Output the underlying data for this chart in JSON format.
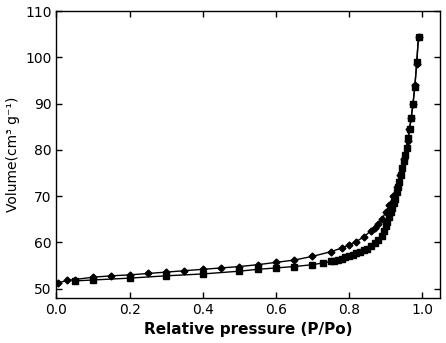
{
  "adsorption_x": [
    0.005,
    0.03,
    0.05,
    0.1,
    0.15,
    0.2,
    0.25,
    0.3,
    0.35,
    0.4,
    0.45,
    0.5,
    0.55,
    0.6,
    0.65,
    0.7,
    0.75,
    0.78,
    0.8,
    0.82,
    0.84,
    0.86,
    0.87,
    0.88,
    0.89,
    0.9,
    0.91,
    0.92,
    0.93,
    0.94,
    0.95,
    0.96,
    0.965,
    0.97,
    0.975,
    0.98,
    0.985,
    0.99
  ],
  "adsorption_y": [
    51.3,
    51.8,
    52.0,
    52.5,
    52.8,
    53.0,
    53.3,
    53.6,
    53.9,
    54.2,
    54.5,
    54.8,
    55.2,
    55.7,
    56.2,
    57.0,
    58.0,
    58.8,
    59.5,
    60.2,
    61.2,
    62.5,
    63.2,
    64.0,
    65.0,
    66.5,
    68.0,
    70.0,
    72.0,
    74.5,
    78.0,
    82.0,
    84.5,
    87.0,
    90.0,
    94.0,
    98.5,
    104.5
  ],
  "desorption_x": [
    0.99,
    0.985,
    0.98,
    0.975,
    0.97,
    0.966,
    0.962,
    0.958,
    0.954,
    0.95,
    0.946,
    0.942,
    0.938,
    0.934,
    0.93,
    0.926,
    0.922,
    0.918,
    0.914,
    0.91,
    0.905,
    0.9,
    0.895,
    0.89,
    0.88,
    0.87,
    0.86,
    0.85,
    0.84,
    0.83,
    0.82,
    0.81,
    0.8,
    0.79,
    0.78,
    0.77,
    0.76,
    0.75,
    0.73,
    0.7,
    0.65,
    0.6,
    0.55,
    0.5,
    0.4,
    0.3,
    0.2,
    0.1,
    0.05
  ],
  "desorption_y": [
    104.5,
    99.0,
    93.5,
    90.0,
    87.0,
    84.5,
    82.5,
    80.5,
    79.0,
    77.5,
    76.0,
    74.5,
    73.0,
    72.0,
    70.8,
    69.5,
    68.5,
    67.5,
    66.5,
    65.5,
    64.5,
    63.5,
    62.5,
    61.5,
    60.5,
    59.8,
    59.2,
    58.7,
    58.3,
    58.0,
    57.7,
    57.4,
    57.1,
    56.8,
    56.5,
    56.3,
    56.1,
    55.9,
    55.6,
    55.2,
    54.8,
    54.5,
    54.2,
    53.8,
    53.2,
    52.8,
    52.3,
    51.9,
    51.7
  ],
  "xlabel": "Relative pressure (P/Po)",
  "ylabel": "Volume(cm³ g⁻¹)",
  "xlim": [
    0.0,
    1.05
  ],
  "ylim": [
    48,
    110
  ],
  "xticks": [
    0.0,
    0.2,
    0.4,
    0.6,
    0.8,
    1.0
  ],
  "yticks": [
    50,
    60,
    70,
    80,
    90,
    100,
    110
  ],
  "adsorption_color": "#000000",
  "desorption_color": "#000000",
  "background_color": "#ffffff",
  "adsorption_marker": "D",
  "desorption_marker": "s",
  "linewidth": 1.0,
  "markersize_ads": 3.5,
  "markersize_des": 4.0,
  "xlabel_fontsize": 11,
  "ylabel_fontsize": 10,
  "tick_fontsize": 10
}
